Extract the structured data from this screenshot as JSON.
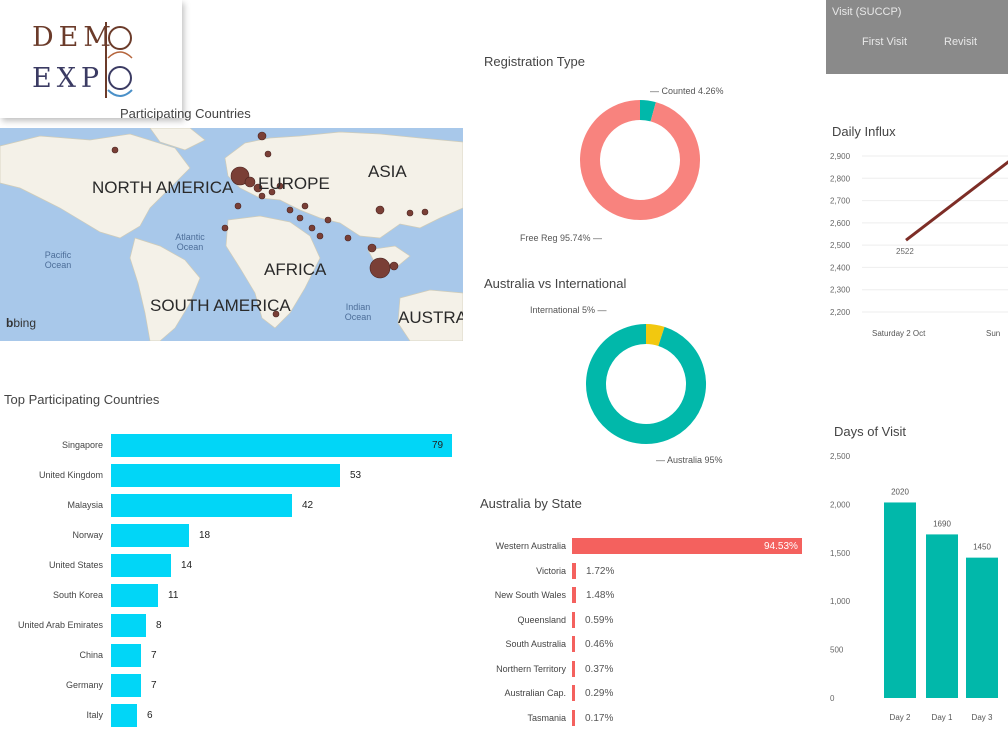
{
  "logo": {
    "line1": "DEM",
    "line2": "EXP",
    "o_letter": "O"
  },
  "map": {
    "title": "Participating Countries",
    "labels": [
      "NORTH AMERICA",
      "EUROPE",
      "ASIA",
      "AFRICA",
      "SOUTH AMERICA",
      "AUSTRA"
    ],
    "oceans": [
      "Pacific Ocean",
      "Atlantic Ocean",
      "Indian Ocean"
    ],
    "attribution": "bing"
  },
  "visit_box": {
    "title": "Visit (SUCCP)",
    "cols": [
      "First Visit",
      "Revisit"
    ]
  },
  "registration": {
    "title": "Registration Type",
    "slices": [
      {
        "label": "Free Reg",
        "value": 95.74,
        "display": "Free Reg 95.74% —",
        "color": "#f8837e"
      },
      {
        "label": "Counted",
        "value": 4.26,
        "display": "— Counted 4.26%",
        "color": "#00b8aa"
      }
    ]
  },
  "aus_intl": {
    "title": "Australia vs International",
    "slices": [
      {
        "label": "Australia",
        "value": 95,
        "display": "— Australia 95%",
        "color": "#01b8aa"
      },
      {
        "label": "International",
        "value": 5,
        "display": "International 5% —",
        "color": "#f2c80f"
      }
    ]
  },
  "daily": {
    "title": "Daily Influx",
    "y_ticks": [
      "2,900",
      "2,800",
      "2,700",
      "2,600",
      "2,500",
      "2,400",
      "2,300",
      "2,200"
    ],
    "x_labels": [
      "Saturday 2 Oct",
      "Sun"
    ],
    "point_label": "2522",
    "series": [
      2522,
      2900
    ],
    "color": "#7d2d26"
  },
  "days_visit": {
    "title": "Days of Visit",
    "y_ticks": [
      "2,500",
      "2,000",
      "1,500",
      "1,000",
      "500",
      "0"
    ],
    "categories": [
      "Day 2",
      "Day 1",
      "Day 3"
    ],
    "values": [
      2020,
      1690,
      1450
    ],
    "value_labels": [
      "2020",
      "1690",
      "1450"
    ],
    "color": "#01b8aa"
  },
  "top_countries": {
    "title": "Top Participating Countries",
    "categories": [
      "Singapore",
      "United Kingdom",
      "Malaysia",
      "Norway",
      "United States",
      "South Korea",
      "United Arab Emirates",
      "China",
      "Germany",
      "Italy"
    ],
    "values": [
      79,
      53,
      42,
      18,
      14,
      11,
      8,
      7,
      7,
      6
    ],
    "color": "#01d6f7"
  },
  "states": {
    "title": "Australia by State",
    "categories": [
      "Western Australia",
      "Victoria",
      "New South Wales",
      "Queensland",
      "South Australia",
      "Northern Territory",
      "Australian Cap.",
      "Tasmania"
    ],
    "values": [
      94.53,
      1.72,
      1.48,
      0.59,
      0.46,
      0.37,
      0.29,
      0.17
    ],
    "labels": [
      "94.53%",
      "1.72%",
      "1.48%",
      "0.59%",
      "0.46%",
      "0.37%",
      "0.29%",
      "0.17%"
    ],
    "color": "#f4615e"
  },
  "chart_data": [
    {
      "type": "pie",
      "title": "Registration Type",
      "categories": [
        "Free Reg",
        "Counted"
      ],
      "values": [
        95.74,
        4.26
      ]
    },
    {
      "type": "pie",
      "title": "Australia vs International",
      "categories": [
        "Australia",
        "International"
      ],
      "values": [
        95,
        5
      ]
    },
    {
      "type": "bar",
      "title": "Top Participating Countries",
      "categories": [
        "Singapore",
        "United Kingdom",
        "Malaysia",
        "Norway",
        "United States",
        "South Korea",
        "United Arab Emirates",
        "China",
        "Germany",
        "Italy"
      ],
      "values": [
        79,
        53,
        42,
        18,
        14,
        11,
        8,
        7,
        7,
        6
      ]
    },
    {
      "type": "bar",
      "title": "Australia by State",
      "categories": [
        "Western Australia",
        "Victoria",
        "New South Wales",
        "Queensland",
        "South Australia",
        "Northern Territory",
        "Australian Cap.",
        "Tasmania"
      ],
      "values": [
        94.53,
        1.72,
        1.48,
        0.59,
        0.46,
        0.37,
        0.29,
        0.17
      ]
    },
    {
      "type": "bar",
      "title": "Days of Visit",
      "categories": [
        "Day 2",
        "Day 1",
        "Day 3"
      ],
      "values": [
        2020,
        1690,
        1450
      ],
      "ylim": [
        0,
        2500
      ]
    },
    {
      "type": "line",
      "title": "Daily Influx",
      "x": [
        "Saturday 2 Oct",
        "Sun"
      ],
      "values": [
        2522,
        2900
      ],
      "ylim": [
        2200,
        2900
      ]
    }
  ]
}
